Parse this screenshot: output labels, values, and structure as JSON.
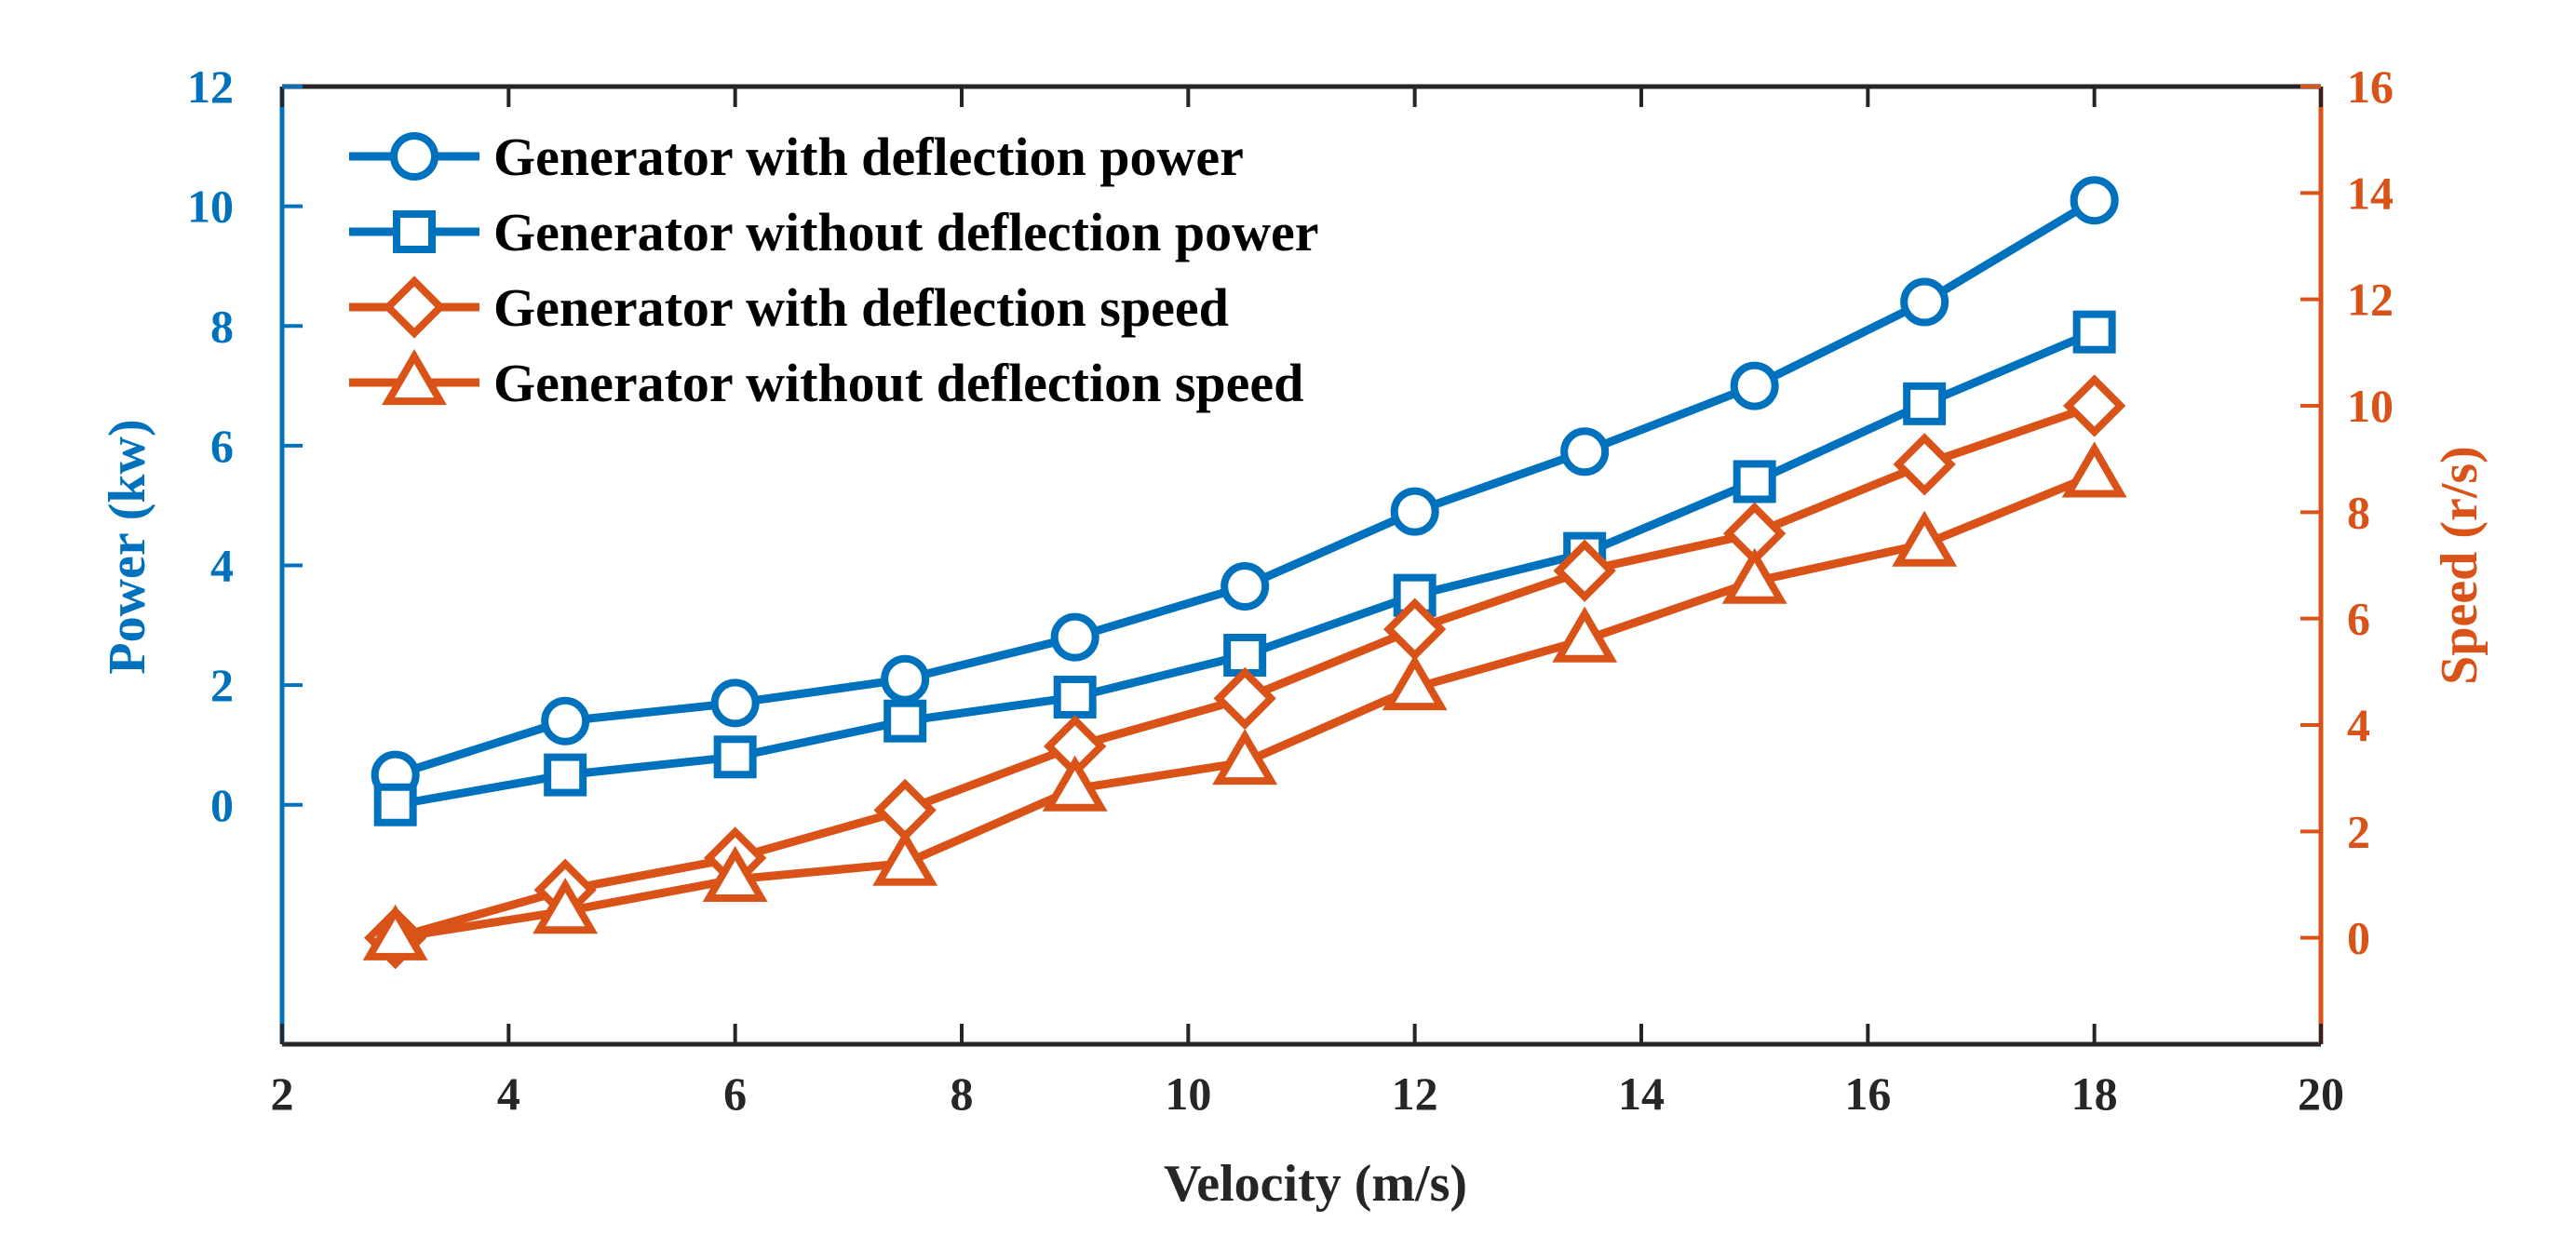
{
  "colors": {
    "blue": "#0072BD",
    "orange": "#D95319",
    "text": "#262626"
  },
  "chart_data": {
    "type": "line",
    "xlabel": "Velocity (m/s)",
    "ylabel_left": "Power (kw)",
    "ylabel_right": "Speed (r/s)",
    "xlim": [
      2,
      20
    ],
    "xticks": [
      2,
      4,
      6,
      8,
      10,
      12,
      14,
      16,
      18,
      20
    ],
    "ylim_left": [
      -4,
      12
    ],
    "yticks_left": [
      0,
      2,
      4,
      6,
      8,
      10,
      12
    ],
    "ylim_right": [
      -2,
      16
    ],
    "yticks_right": [
      0,
      2,
      4,
      6,
      8,
      10,
      12,
      14,
      16
    ],
    "grid": false,
    "legend_position": "top-left",
    "x": [
      3,
      4.5,
      6,
      7.5,
      9,
      10.5,
      12,
      13.5,
      15,
      16.5,
      18
    ],
    "series": [
      {
        "name": "Generator with deflection power",
        "axis": "left",
        "marker": "circle",
        "color": "blue",
        "values": [
          0.5,
          1.4,
          1.7,
          2.1,
          2.8,
          3.65,
          4.9,
          5.9,
          7.0,
          8.4,
          10.1
        ]
      },
      {
        "name": "Generator without deflection power",
        "axis": "left",
        "marker": "square",
        "color": "blue",
        "values": [
          0.0,
          0.5,
          0.8,
          1.4,
          1.8,
          2.5,
          3.5,
          4.2,
          5.4,
          6.7,
          7.9
        ]
      },
      {
        "name": "Generator with deflection speed",
        "axis": "right",
        "marker": "diamond",
        "color": "orange",
        "values": [
          0.0,
          0.9,
          1.5,
          2.4,
          3.6,
          4.5,
          5.8,
          6.9,
          7.6,
          8.9,
          10.0
        ]
      },
      {
        "name": "Generator without deflection speed",
        "axis": "right",
        "marker": "triangle",
        "color": "orange",
        "values": [
          0.0,
          0.5,
          1.1,
          1.4,
          2.8,
          3.3,
          4.7,
          5.6,
          6.7,
          7.4,
          8.7
        ]
      }
    ]
  }
}
